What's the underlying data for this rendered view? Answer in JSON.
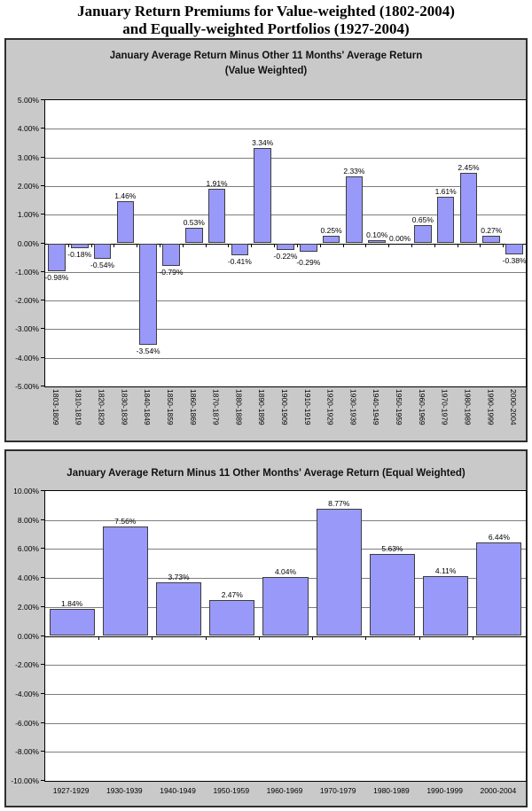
{
  "title": {
    "line1": "January Return Premiums for Value-weighted (1802-2004)",
    "line2": "and Equally-weighted Portfolios (1927-2004)"
  },
  "colors": {
    "bar_fill": "#9999fa",
    "bar_border": "#3d3d3d",
    "panel_background": "#c9c9c9",
    "gridline": "#7d7d7d",
    "axis": "#000000"
  },
  "chart_data": [
    {
      "type": "bar",
      "title": "January Average Return Minus Other 11 Months' Average Return",
      "subtitle": "(Value Weighted)",
      "categories": [
        "1803-1809",
        "1810-1819",
        "1820-1829",
        "1830-1839",
        "1840-1849",
        "1850-1859",
        "1860-1869",
        "1870-1879",
        "1880-1889",
        "1890-1899",
        "1900-1909",
        "1910-1919",
        "1920-1929",
        "1930-1939",
        "1940-1949",
        "1950-1959",
        "1960-1969",
        "1970-1979",
        "1980-1989",
        "1990-1999",
        "2000-2004"
      ],
      "values": [
        -0.98,
        -0.18,
        -0.54,
        1.46,
        -3.54,
        -0.79,
        0.53,
        1.91,
        -0.41,
        3.34,
        -0.22,
        -0.29,
        0.25,
        2.33,
        0.1,
        0.0,
        0.65,
        1.61,
        2.45,
        0.27,
        -0.38
      ],
      "value_labels": [
        "-0.98%",
        "-0.18%",
        "-0.54%",
        "1.46%",
        "-3.54%",
        "-0.79%",
        "0.53%",
        "1.91%",
        "-0.41%",
        "3.34%",
        "-0.22%",
        "-0.29%",
        "0.25%",
        "2.33%",
        "0.10%",
        "0.00%",
        "0.65%",
        "1.61%",
        "2.45%",
        "0.27%",
        "-0.38%"
      ],
      "xlabel": "",
      "ylabel": "",
      "ylim": [
        -5,
        5
      ],
      "ytick_step": 1,
      "ytick_labels": [
        "5.00%",
        "4.00%",
        "3.00%",
        "2.00%",
        "1.00%",
        "0.00%",
        "-1.00%",
        "-2.00%",
        "-3.00%",
        "-4.00%",
        "-5.00%"
      ],
      "grid": true,
      "legend": "none",
      "x_label_orientation": "vertical"
    },
    {
      "type": "bar",
      "title": "January Average Return Minus 11 Other Months' Average Return (Equal Weighted)",
      "subtitle": "",
      "categories": [
        "1927-1929",
        "1930-1939",
        "1940-1949",
        "1950-1959",
        "1960-1969",
        "1970-1979",
        "1980-1989",
        "1990-1999",
        "2000-2004"
      ],
      "values": [
        1.84,
        7.56,
        3.73,
        2.47,
        4.04,
        8.77,
        5.63,
        4.11,
        6.44
      ],
      "value_labels": [
        "1.84%",
        "7.56%",
        "3.73%",
        "2.47%",
        "4.04%",
        "8.77%",
        "5.63%",
        "4.11%",
        "6.44%"
      ],
      "xlabel": "",
      "ylabel": "",
      "ylim": [
        -10,
        10
      ],
      "ytick_step": 2,
      "ytick_labels": [
        "10.00%",
        "8.00%",
        "6.00%",
        "4.00%",
        "2.00%",
        "0.00%",
        "-2.00%",
        "-4.00%",
        "-6.00%",
        "-8.00%",
        "-10.00%"
      ],
      "grid": true,
      "legend": "none",
      "x_label_orientation": "horizontal"
    }
  ]
}
